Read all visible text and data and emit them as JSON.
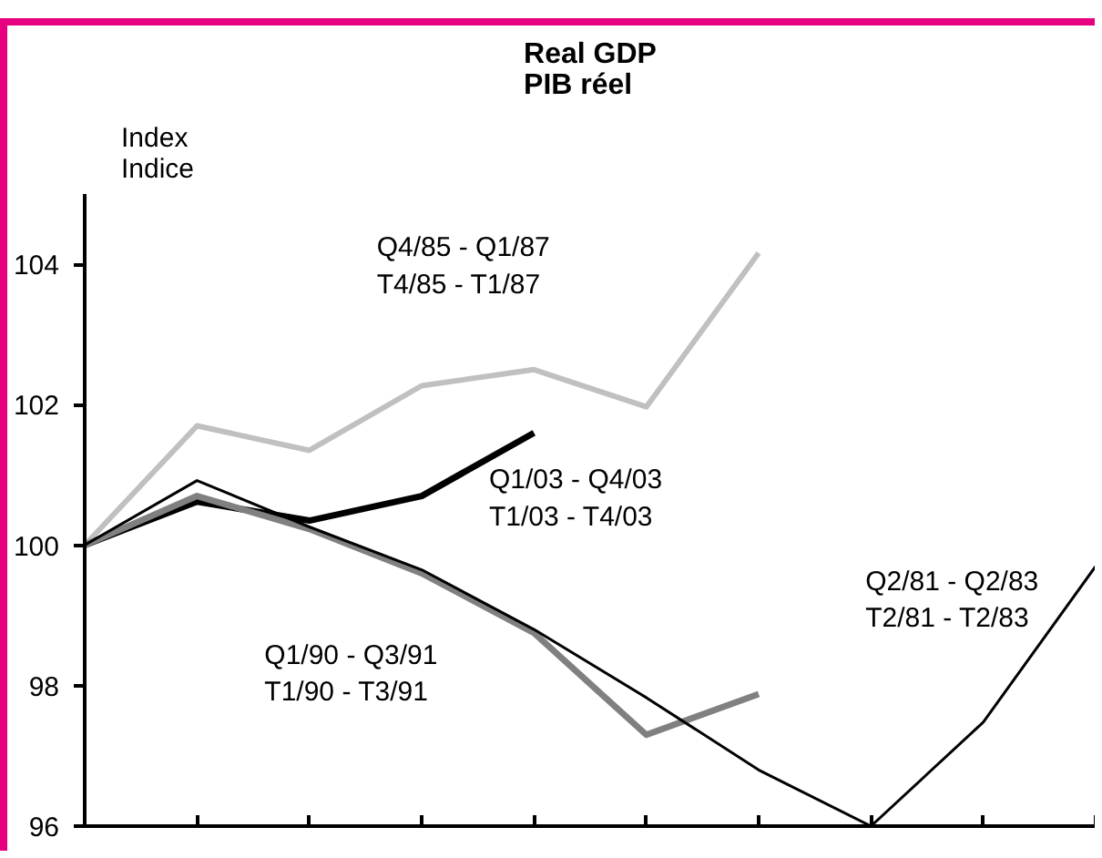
{
  "chart_data": {
    "type": "line",
    "title": "Real GDP\nPIB réel",
    "ylabel": "Index\nIndice",
    "categories": [
      null,
      null,
      null,
      null,
      null,
      null,
      null,
      null,
      null,
      null
    ],
    "series": [
      {
        "name": "Q4/85 - Q1/87\nT4/85 - T1/87",
        "color": "#c0c0c0",
        "values": [
          100,
          101.7,
          101.35,
          102.27,
          102.5,
          101.97,
          104.16,
          null,
          null,
          null
        ]
      },
      {
        "name": "Q1/03 - Q4/03\nT1/03 - T4/03",
        "color": "#000000",
        "values": [
          100,
          100.62,
          100.35,
          100.7,
          101.6,
          null,
          null,
          null,
          null,
          null
        ]
      },
      {
        "name": "Q1/90 - Q3/91\nT1/90 - T3/91",
        "color": "#808080",
        "values": [
          100,
          100.7,
          100.23,
          99.6,
          98.75,
          97.3,
          97.88,
          null,
          null,
          null
        ]
      },
      {
        "name": "Q2/81 - Q2/83\nT2/81 - T2/83",
        "color": "#000000",
        "values": [
          100,
          100.92,
          100.26,
          99.65,
          98.8,
          97.83,
          96.8,
          96.0,
          97.48,
          99.7
        ]
      }
    ],
    "ylim": [
      96,
      105
    ],
    "yticks": [
      96,
      98,
      100,
      102,
      104
    ],
    "grid": false,
    "legend": false,
    "marker": "none",
    "line_style": "solid"
  }
}
